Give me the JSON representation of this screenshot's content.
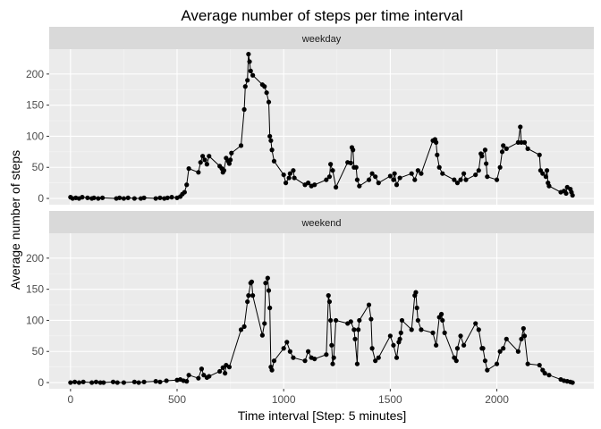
{
  "chart_data": {
    "type": "line",
    "title": "Average number of steps per time interval",
    "xlabel": "Time interval [Step: 5 minutes]",
    "ylabel": "Average number of steps",
    "xlim": [
      -100,
      2455
    ],
    "ylim": [
      -10,
      240
    ],
    "x_ticks": [
      0,
      500,
      1000,
      1500,
      2000
    ],
    "y_ticks": [
      0,
      50,
      100,
      150,
      200
    ],
    "grid": true,
    "markers": "points",
    "panels": [
      {
        "name": "weekday",
        "series": [
          {
            "points": [
              [
                0,
                2
              ],
              [
                10,
                0
              ],
              [
                25,
                1
              ],
              [
                40,
                0
              ],
              [
                55,
                2
              ],
              [
                80,
                1
              ],
              [
                100,
                0
              ],
              [
                110,
                1
              ],
              [
                130,
                0
              ],
              [
                150,
                1
              ],
              [
                215,
                0
              ],
              [
                230,
                1
              ],
              [
                250,
                0
              ],
              [
                270,
                1
              ],
              [
                300,
                0
              ],
              [
                330,
                0
              ],
              [
                345,
                1
              ],
              [
                400,
                0
              ],
              [
                420,
                1
              ],
              [
                440,
                0
              ],
              [
                455,
                1
              ],
              [
                475,
                2
              ],
              [
                500,
                1
              ],
              [
                515,
                3
              ],
              [
                525,
                7
              ],
              [
                535,
                10
              ],
              [
                545,
                22
              ],
              [
                555,
                48
              ],
              [
                600,
                42
              ],
              [
                610,
                58
              ],
              [
                620,
                68
              ],
              [
                630,
                62
              ],
              [
                640,
                55
              ],
              [
                650,
                68
              ],
              [
                700,
                52
              ],
              [
                710,
                48
              ],
              [
                715,
                42
              ],
              [
                720,
                45
              ],
              [
                730,
                65
              ],
              [
                740,
                60
              ],
              [
                745,
                56
              ],
              [
                750,
                62
              ],
              [
                755,
                73
              ],
              [
                800,
                85
              ],
              [
                815,
                143
              ],
              [
                820,
                180
              ],
              [
                830,
                190
              ],
              [
                835,
                232
              ],
              [
                840,
                220
              ],
              [
                845,
                205
              ],
              [
                855,
                198
              ],
              [
                900,
                183
              ],
              [
                910,
                180
              ],
              [
                920,
                170
              ],
              [
                930,
                155
              ],
              [
                935,
                100
              ],
              [
                940,
                93
              ],
              [
                945,
                78
              ],
              [
                955,
                60
              ],
              [
                1000,
                38
              ],
              [
                1010,
                25
              ],
              [
                1025,
                33
              ],
              [
                1030,
                40
              ],
              [
                1045,
                45
              ],
              [
                1050,
                33
              ],
              [
                1100,
                22
              ],
              [
                1115,
                25
              ],
              [
                1130,
                20
              ],
              [
                1145,
                22
              ],
              [
                1200,
                30
              ],
              [
                1215,
                35
              ],
              [
                1220,
                55
              ],
              [
                1230,
                45
              ],
              [
                1245,
                18
              ],
              [
                1300,
                58
              ],
              [
                1315,
                57
              ],
              [
                1320,
                82
              ],
              [
                1325,
                78
              ],
              [
                1330,
                50
              ],
              [
                1340,
                50
              ],
              [
                1345,
                30
              ],
              [
                1355,
                20
              ],
              [
                1400,
                30
              ],
              [
                1415,
                40
              ],
              [
                1430,
                35
              ],
              [
                1445,
                25
              ],
              [
                1500,
                36
              ],
              [
                1515,
                30
              ],
              [
                1520,
                40
              ],
              [
                1530,
                22
              ],
              [
                1545,
                33
              ],
              [
                1600,
                40
              ],
              [
                1615,
                30
              ],
              [
                1630,
                45
              ],
              [
                1645,
                40
              ],
              [
                1700,
                93
              ],
              [
                1710,
                95
              ],
              [
                1715,
                90
              ],
              [
                1720,
                70
              ],
              [
                1730,
                50
              ],
              [
                1745,
                40
              ],
              [
                1800,
                30
              ],
              [
                1815,
                25
              ],
              [
                1830,
                30
              ],
              [
                1845,
                40
              ],
              [
                1855,
                30
              ],
              [
                1900,
                38
              ],
              [
                1915,
                45
              ],
              [
                1925,
                72
              ],
              [
                1930,
                68
              ],
              [
                1945,
                78
              ],
              [
                1950,
                56
              ],
              [
                1955,
                35
              ],
              [
                2000,
                30
              ],
              [
                2015,
                50
              ],
              [
                2025,
                75
              ],
              [
                2030,
                85
              ],
              [
                2045,
                80
              ],
              [
                2100,
                90
              ],
              [
                2110,
                115
              ],
              [
                2115,
                90
              ],
              [
                2130,
                90
              ],
              [
                2145,
                80
              ],
              [
                2200,
                70
              ],
              [
                2205,
                45
              ],
              [
                2215,
                40
              ],
              [
                2230,
                35
              ],
              [
                2235,
                45
              ],
              [
                2240,
                25
              ],
              [
                2245,
                20
              ],
              [
                2300,
                10
              ],
              [
                2315,
                12
              ],
              [
                2325,
                8
              ],
              [
                2330,
                18
              ],
              [
                2345,
                15
              ],
              [
                2350,
                10
              ],
              [
                2355,
                5
              ]
            ]
          }
        ]
      },
      {
        "name": "weekend",
        "series": [
          {
            "points": [
              [
                0,
                0
              ],
              [
                20,
                1
              ],
              [
                40,
                0
              ],
              [
                60,
                1
              ],
              [
                100,
                0
              ],
              [
                120,
                1
              ],
              [
                140,
                0
              ],
              [
                155,
                0
              ],
              [
                200,
                1
              ],
              [
                220,
                0
              ],
              [
                250,
                0
              ],
              [
                300,
                1
              ],
              [
                320,
                0
              ],
              [
                345,
                1
              ],
              [
                400,
                2
              ],
              [
                420,
                1
              ],
              [
                450,
                3
              ],
              [
                500,
                4
              ],
              [
                515,
                5
              ],
              [
                530,
                3
              ],
              [
                545,
                2
              ],
              [
                555,
                12
              ],
              [
                600,
                7
              ],
              [
                615,
                22
              ],
              [
                625,
                12
              ],
              [
                640,
                8
              ],
              [
                650,
                10
              ],
              [
                700,
                18
              ],
              [
                715,
                24
              ],
              [
                725,
                15
              ],
              [
                730,
                28
              ],
              [
                745,
                25
              ],
              [
                800,
                85
              ],
              [
                815,
                90
              ],
              [
                830,
                130
              ],
              [
                835,
                140
              ],
              [
                845,
                160
              ],
              [
                850,
                162
              ],
              [
                855,
                140
              ],
              [
                900,
                76
              ],
              [
                910,
                95
              ],
              [
                915,
                160
              ],
              [
                925,
                168
              ],
              [
                930,
                148
              ],
              [
                935,
                120
              ],
              [
                940,
                25
              ],
              [
                945,
                20
              ],
              [
                955,
                35
              ],
              [
                1000,
                55
              ],
              [
                1015,
                65
              ],
              [
                1030,
                50
              ],
              [
                1045,
                40
              ],
              [
                1100,
                35
              ],
              [
                1115,
                50
              ],
              [
                1130,
                40
              ],
              [
                1145,
                38
              ],
              [
                1200,
                45
              ],
              [
                1210,
                140
              ],
              [
                1215,
                130
              ],
              [
                1220,
                100
              ],
              [
                1225,
                60
              ],
              [
                1230,
                30
              ],
              [
                1235,
                40
              ],
              [
                1245,
                100
              ],
              [
                1300,
                95
              ],
              [
                1315,
                98
              ],
              [
                1330,
                85
              ],
              [
                1335,
                70
              ],
              [
                1345,
                30
              ],
              [
                1350,
                85
              ],
              [
                1355,
                100
              ],
              [
                1400,
                125
              ],
              [
                1410,
                102
              ],
              [
                1415,
                55
              ],
              [
                1430,
                35
              ],
              [
                1445,
                40
              ],
              [
                1500,
                75
              ],
              [
                1515,
                60
              ],
              [
                1530,
                40
              ],
              [
                1540,
                65
              ],
              [
                1545,
                70
              ],
              [
                1550,
                80
              ],
              [
                1555,
                100
              ],
              [
                1600,
                85
              ],
              [
                1615,
                140
              ],
              [
                1620,
                145
              ],
              [
                1625,
                120
              ],
              [
                1630,
                100
              ],
              [
                1645,
                85
              ],
              [
                1700,
                80
              ],
              [
                1715,
                60
              ],
              [
                1730,
                105
              ],
              [
                1740,
                110
              ],
              [
                1745,
                100
              ],
              [
                1755,
                80
              ],
              [
                1800,
                40
              ],
              [
                1810,
                35
              ],
              [
                1815,
                55
              ],
              [
                1830,
                75
              ],
              [
                1845,
                60
              ],
              [
                1900,
                95
              ],
              [
                1915,
                85
              ],
              [
                1930,
                55
              ],
              [
                1935,
                55
              ],
              [
                1945,
                35
              ],
              [
                1955,
                20
              ],
              [
                2000,
                30
              ],
              [
                2015,
                50
              ],
              [
                2030,
                55
              ],
              [
                2045,
                70
              ],
              [
                2100,
                50
              ],
              [
                2115,
                70
              ],
              [
                2125,
                87
              ],
              [
                2130,
                75
              ],
              [
                2145,
                30
              ],
              [
                2200,
                28
              ],
              [
                2215,
                20
              ],
              [
                2225,
                15
              ],
              [
                2245,
                12
              ],
              [
                2300,
                5
              ],
              [
                2315,
                3
              ],
              [
                2330,
                2
              ],
              [
                2345,
                1
              ],
              [
                2355,
                0
              ]
            ]
          }
        ]
      }
    ]
  }
}
